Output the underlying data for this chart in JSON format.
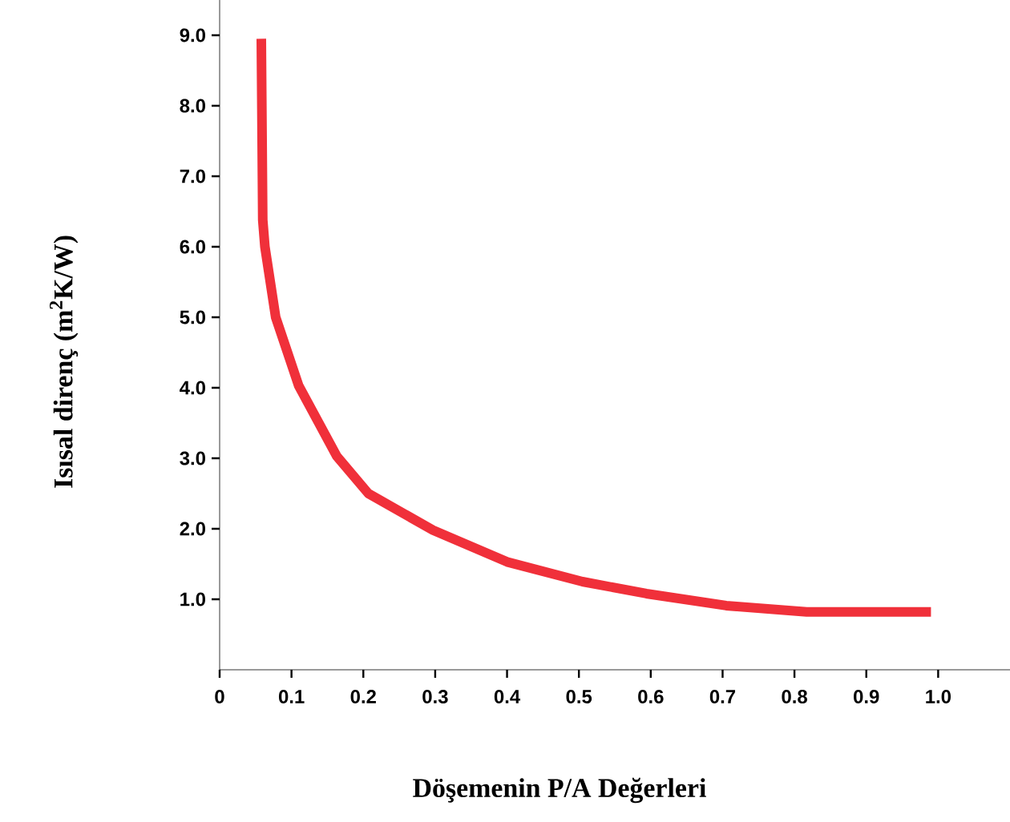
{
  "chart_data": {
    "type": "line",
    "xlabel": "Döşemenin P/A Değerleri",
    "ylabel": "Isısal direnç (m$^{2}$K/W)",
    "x": [
      0.058,
      0.06,
      0.063,
      0.078,
      0.11,
      0.163,
      0.207,
      0.297,
      0.4,
      0.505,
      0.594,
      0.705,
      0.817,
      0.99
    ],
    "values": [
      8.95,
      6.38,
      6.0,
      5.0,
      4.03,
      3.03,
      2.5,
      1.98,
      1.53,
      1.25,
      1.08,
      0.91,
      0.82,
      0.82
    ],
    "color": "#f0303a",
    "xlim": [
      0,
      1.1
    ],
    "ylim": [
      0,
      9.5
    ],
    "xticks": [
      0,
      0.1,
      0.2,
      0.3,
      0.4,
      0.5,
      0.6,
      0.7,
      0.8,
      0.9,
      {
        "value": 1.0,
        "label": "1.0"
      }
    ],
    "yticks": [
      {
        "value": 1,
        "label": "1.0"
      },
      {
        "value": 2,
        "label": "2.0"
      },
      {
        "value": 3,
        "label": "3.0"
      },
      {
        "value": 4,
        "label": "4.0"
      },
      {
        "value": 5,
        "label": "5.0"
      },
      {
        "value": 6,
        "label": "6.0"
      },
      {
        "value": 7,
        "label": "7.0"
      },
      {
        "value": 8,
        "label": "8.0"
      },
      {
        "value": 9,
        "label": "9.0"
      }
    ]
  }
}
